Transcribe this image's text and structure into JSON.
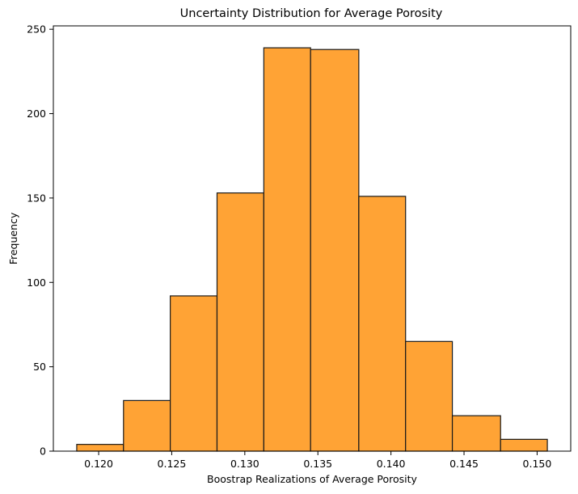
{
  "chart_data": {
    "type": "bar",
    "title": "Uncertainty Distribution for Average Porosity",
    "xlabel": "Boostrap Realizations of Average Porosity",
    "ylabel": "Frequency",
    "bin_edges": [
      0.1185,
      0.1217,
      0.1249,
      0.1281,
      0.1313,
      0.1345,
      0.1378,
      0.141,
      0.1442,
      0.1475,
      0.1507
    ],
    "values": [
      4,
      30,
      92,
      153,
      239,
      238,
      151,
      65,
      21,
      7
    ],
    "xlim": [
      0.1169,
      0.1523
    ],
    "ylim": [
      0,
      252
    ],
    "xticks": [
      0.12,
      0.125,
      0.13,
      0.135,
      0.14,
      0.145,
      0.15
    ],
    "xtick_labels": [
      "0.120",
      "0.125",
      "0.130",
      "0.135",
      "0.140",
      "0.145",
      "0.150"
    ],
    "yticks": [
      0,
      50,
      100,
      150,
      200,
      250
    ],
    "ytick_labels": [
      "0",
      "50",
      "100",
      "150",
      "200",
      "250"
    ],
    "grid": false,
    "legend": "none",
    "colors": {
      "bar_fill": "#ffa335",
      "bar_edge": "#1a1a1a"
    }
  }
}
